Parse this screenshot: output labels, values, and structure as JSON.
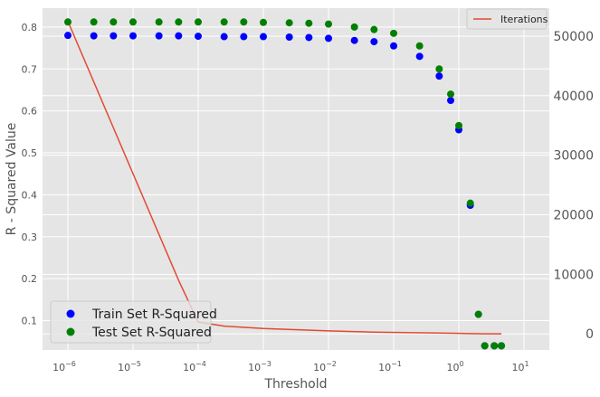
{
  "chart_data": {
    "type": "scatter",
    "xlabel": "Threshold",
    "ylabel": "R - Squared Value",
    "x_scale": "log",
    "xlim": [
      1e-06,
      10
    ],
    "ylim": [
      0.03,
      0.845
    ],
    "y2lim": [
      -2700,
      54700
    ],
    "grid": true,
    "x_ticks": [
      {
        "value": 1e-06,
        "base": "10",
        "exp": "−6"
      },
      {
        "value": 1e-05,
        "base": "10",
        "exp": "−5"
      },
      {
        "value": 0.0001,
        "base": "10",
        "exp": "−4"
      },
      {
        "value": 0.001,
        "base": "10",
        "exp": "−3"
      },
      {
        "value": 0.01,
        "base": "10",
        "exp": "−2"
      },
      {
        "value": 0.1,
        "base": "10",
        "exp": "−1"
      },
      {
        "value": 1,
        "base": "10",
        "exp": "0"
      },
      {
        "value": 10,
        "base": "10",
        "exp": "1"
      }
    ],
    "y_ticks": [
      "0.1",
      "0.2",
      "0.3",
      "0.4",
      "0.5",
      "0.6",
      "0.7",
      "0.8"
    ],
    "y2_ticks": [
      "0",
      "10000",
      "20000",
      "30000",
      "40000",
      "50000"
    ],
    "x": [
      1e-06,
      2.5e-06,
      5e-06,
      1e-05,
      2.5e-05,
      5e-05,
      0.0001,
      0.00025,
      0.0005,
      0.001,
      0.0025,
      0.005,
      0.01,
      0.025,
      0.05,
      0.1,
      0.25,
      0.5,
      0.75,
      1,
      1.5,
      2,
      2.5,
      3.5,
      4.5
    ],
    "series": [
      {
        "name": "Train Set R-Squared",
        "axis": "left",
        "kind": "scatter",
        "color": "#0000ff",
        "values": [
          0.78,
          0.779,
          0.779,
          0.779,
          0.779,
          0.779,
          0.778,
          0.777,
          0.777,
          0.777,
          0.776,
          0.775,
          0.773,
          0.768,
          0.765,
          0.755,
          0.73,
          0.683,
          0.625,
          0.555,
          0.375,
          0.115,
          0.04,
          0.04,
          0.04
        ]
      },
      {
        "name": "Test Set R-Squared",
        "axis": "left",
        "kind": "scatter",
        "color": "#008000",
        "values": [
          0.812,
          0.812,
          0.812,
          0.812,
          0.812,
          0.812,
          0.812,
          0.812,
          0.812,
          0.811,
          0.81,
          0.809,
          0.807,
          0.8,
          0.794,
          0.785,
          0.755,
          0.7,
          0.64,
          0.565,
          0.38,
          0.115,
          0.04,
          0.04,
          0.04
        ]
      },
      {
        "name": "Iterations",
        "axis": "right",
        "kind": "line",
        "color": "#e24a33",
        "x": [
          1e-06,
          5e-05,
          0.0001,
          0.00025,
          0.001,
          0.01,
          0.05,
          0.5,
          1.5,
          2.5,
          4.5
        ],
        "values": [
          52500,
          9000,
          2000,
          1300,
          900,
          500,
          300,
          150,
          50,
          20,
          10
        ]
      }
    ]
  },
  "legend_scatter": [
    {
      "label": "Train Set R-Squared",
      "color": "#0000ff"
    },
    {
      "label": "Test Set R-Squared",
      "color": "#008000"
    }
  ],
  "legend_line": {
    "label": "Iterations",
    "color": "#e24a33"
  }
}
